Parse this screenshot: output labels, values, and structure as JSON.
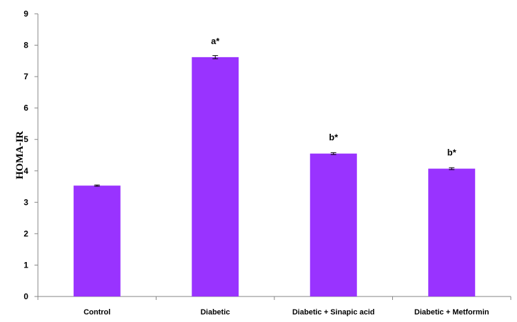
{
  "chart_data": {
    "type": "bar",
    "title": "",
    "xlabel": "",
    "ylabel": "HOMA-IR",
    "categories": [
      "Control",
      "Diabetic",
      "Diabetic + Sinapic acid",
      "Diabetic + Metformin"
    ],
    "values": [
      3.53,
      7.62,
      4.55,
      4.07
    ],
    "errors": [
      0.02,
      0.05,
      0.03,
      0.03
    ],
    "annotations": [
      "",
      "a*",
      "b*",
      "b*"
    ],
    "ylim": [
      0,
      9
    ],
    "yticks": [
      0,
      1,
      2,
      3,
      4,
      5,
      6,
      7,
      8,
      9
    ],
    "grid": false,
    "bar_color": "#9933FF",
    "legend": "none"
  }
}
